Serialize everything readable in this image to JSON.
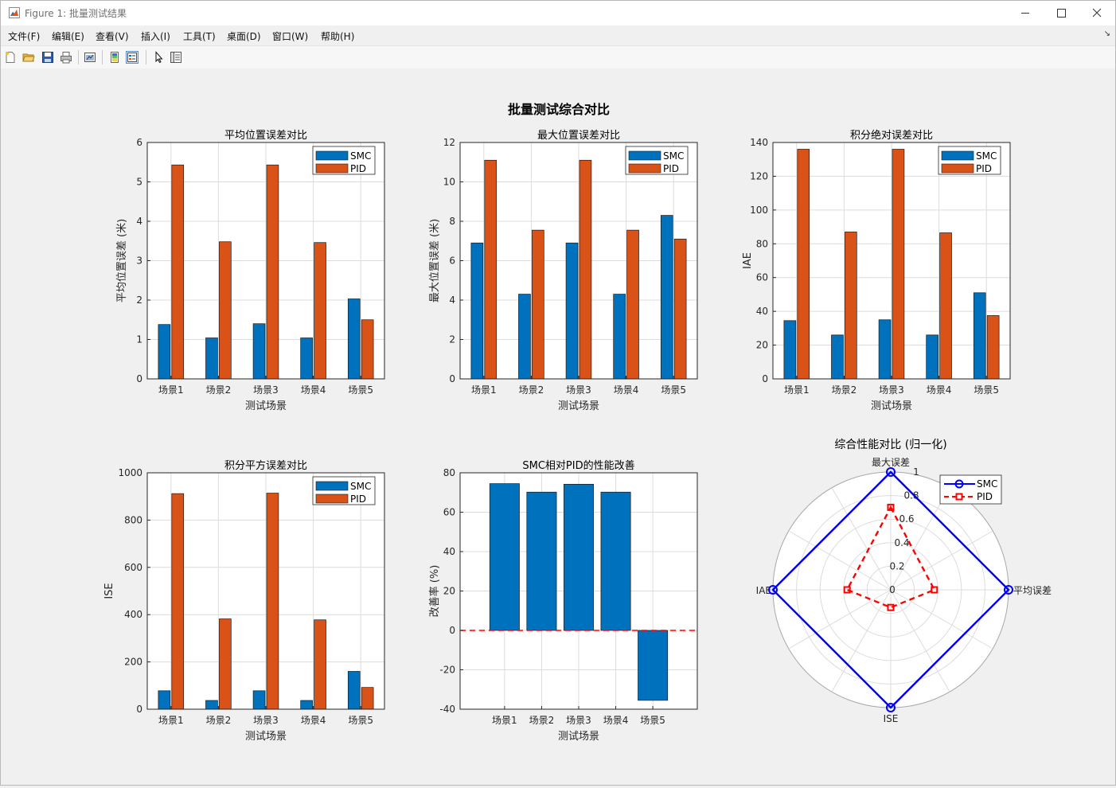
{
  "window": {
    "title": "Figure 1: 批量测试结果",
    "icons": [
      "matlab-figure-icon",
      "minimize-icon",
      "maximize-icon",
      "close-icon"
    ]
  },
  "menu": [
    "文件(F)",
    "编辑(E)",
    "查看(V)",
    "插入(I)",
    "工具(T)",
    "桌面(D)",
    "窗口(W)",
    "帮助(H)"
  ],
  "toolbar": [
    "new-figure-icon",
    "open-file-icon",
    "save-icon",
    "print-icon",
    "link-plot-icon",
    "colorbar-icon",
    "legend-icon",
    "edit-plot-arrow-icon",
    "property-inspector-icon"
  ],
  "figure": {
    "suptitle": "批量测试综合对比"
  },
  "colors": {
    "smc": "#0072bd",
    "pid": "#d95319",
    "radar_smc": "#0000ff",
    "radar_pid": "#ff0000"
  },
  "chart_data": [
    {
      "type": "bar",
      "title": "平均位置误差对比",
      "xlabel": "测试场景",
      "ylabel": "平均位置误差 (米)",
      "categories": [
        "场景1",
        "场景2",
        "场景3",
        "场景4",
        "场景5"
      ],
      "series": [
        {
          "name": "SMC",
          "values": [
            1.38,
            1.04,
            1.4,
            1.04,
            2.03
          ]
        },
        {
          "name": "PID",
          "values": [
            5.43,
            3.48,
            5.43,
            3.46,
            1.5
          ]
        }
      ],
      "ylim": [
        0,
        6
      ],
      "yticks": [
        0,
        1,
        2,
        3,
        4,
        5,
        6
      ],
      "grid": true,
      "legend": "top-right"
    },
    {
      "type": "bar",
      "title": "最大位置误差对比",
      "xlabel": "测试场景",
      "ylabel": "最大位置误差 (米)",
      "categories": [
        "场景1",
        "场景2",
        "场景3",
        "场景4",
        "场景5"
      ],
      "series": [
        {
          "name": "SMC",
          "values": [
            6.9,
            4.3,
            6.9,
            4.3,
            8.3
          ]
        },
        {
          "name": "PID",
          "values": [
            11.1,
            7.55,
            11.1,
            7.55,
            7.1
          ]
        }
      ],
      "ylim": [
        0,
        12
      ],
      "yticks": [
        0,
        2,
        4,
        6,
        8,
        10,
        12
      ],
      "grid": true,
      "legend": "top-right"
    },
    {
      "type": "bar",
      "title": "积分绝对误差对比",
      "xlabel": "测试场景",
      "ylabel": "IAE",
      "categories": [
        "场景1",
        "场景2",
        "场景3",
        "场景4",
        "场景5"
      ],
      "series": [
        {
          "name": "SMC",
          "values": [
            34.5,
            26,
            35,
            26,
            51
          ]
        },
        {
          "name": "PID",
          "values": [
            136,
            87,
            136,
            86.5,
            37.5
          ]
        }
      ],
      "ylim": [
        0,
        140
      ],
      "yticks": [
        0,
        20,
        40,
        60,
        80,
        100,
        120,
        140
      ],
      "grid": true,
      "legend": "top-right"
    },
    {
      "type": "bar",
      "title": "积分平方误差对比",
      "xlabel": "测试场景",
      "ylabel": "ISE",
      "categories": [
        "场景1",
        "场景2",
        "场景3",
        "场景4",
        "场景5"
      ],
      "series": [
        {
          "name": "SMC",
          "values": [
            78,
            37,
            78,
            37,
            160
          ]
        },
        {
          "name": "PID",
          "values": [
            912,
            382,
            914,
            378,
            92
          ]
        }
      ],
      "ylim": [
        0,
        1000
      ],
      "yticks": [
        0,
        200,
        400,
        600,
        800,
        1000
      ],
      "grid": true,
      "legend": "top-right"
    },
    {
      "type": "bar",
      "title": "SMC相对PID的性能改善",
      "xlabel": "测试场景",
      "ylabel": "改善率 (%)",
      "categories": [
        "场景1",
        "场景2",
        "场景3",
        "场景4",
        "场景5"
      ],
      "values": [
        74.5,
        70.2,
        74.2,
        70.2,
        -35.5
      ],
      "reference_line": 0,
      "ylim": [
        -40,
        80
      ],
      "yticks": [
        -40,
        -20,
        0,
        20,
        40,
        60,
        80
      ],
      "grid": true
    },
    {
      "type": "radar",
      "title": "综合性能对比 (归一化)",
      "axes": [
        "最大误差",
        "平均误差",
        "ISE",
        "IAE"
      ],
      "series": [
        {
          "name": "SMC",
          "values": [
            1,
            1,
            1,
            1
          ]
        },
        {
          "name": "PID",
          "values": [
            0.7,
            0.37,
            0.15,
            0.37
          ]
        }
      ],
      "rticks": [
        "0",
        "0.2",
        "0.4",
        "0.6",
        "0.8",
        "1"
      ],
      "rlim": [
        0,
        1
      ],
      "legend": "top-right"
    }
  ]
}
